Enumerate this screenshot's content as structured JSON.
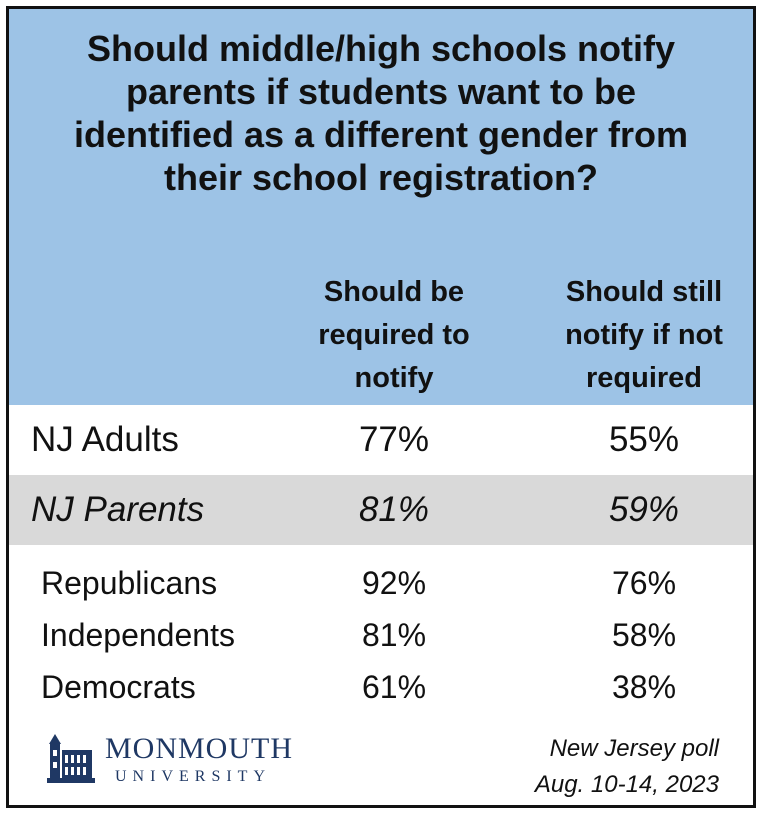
{
  "chart_data": {
    "type": "table",
    "title": "Should middle/high schools notify parents if students want to be identified as a different gender from their school registration?",
    "columns": [
      "Should be required to notify",
      "Should still notify if not required"
    ],
    "rows": [
      {
        "label": "NJ Adults",
        "values": [
          "77%",
          "55%"
        ]
      },
      {
        "label": "NJ Parents",
        "values": [
          "81%",
          "59%"
        ]
      },
      {
        "label": "Republicans",
        "values": [
          "92%",
          "76%"
        ]
      },
      {
        "label": "Independents",
        "values": [
          "81%",
          "58%"
        ]
      },
      {
        "label": "Democrats",
        "values": [
          "61%",
          "38%"
        ]
      }
    ]
  },
  "header": {
    "title_lines": [
      "Should middle/high schools notify",
      "parents if students want to be",
      "identified as a different gender from",
      "their school registration?"
    ],
    "col1_lines": [
      "Should be",
      "required to",
      "notify"
    ],
    "col2_lines": [
      "Should still",
      "notify if not",
      "required"
    ]
  },
  "logo": {
    "name": "MONMOUTH",
    "sub": "UNIVERSITY"
  },
  "source": {
    "line1": "New Jersey poll",
    "line2": "Aug. 10-14, 2023"
  },
  "colors": {
    "header_bg": "#9dc3e6",
    "parents_row_bg": "#d9d9d9",
    "logo_navy": "#1f3864"
  }
}
